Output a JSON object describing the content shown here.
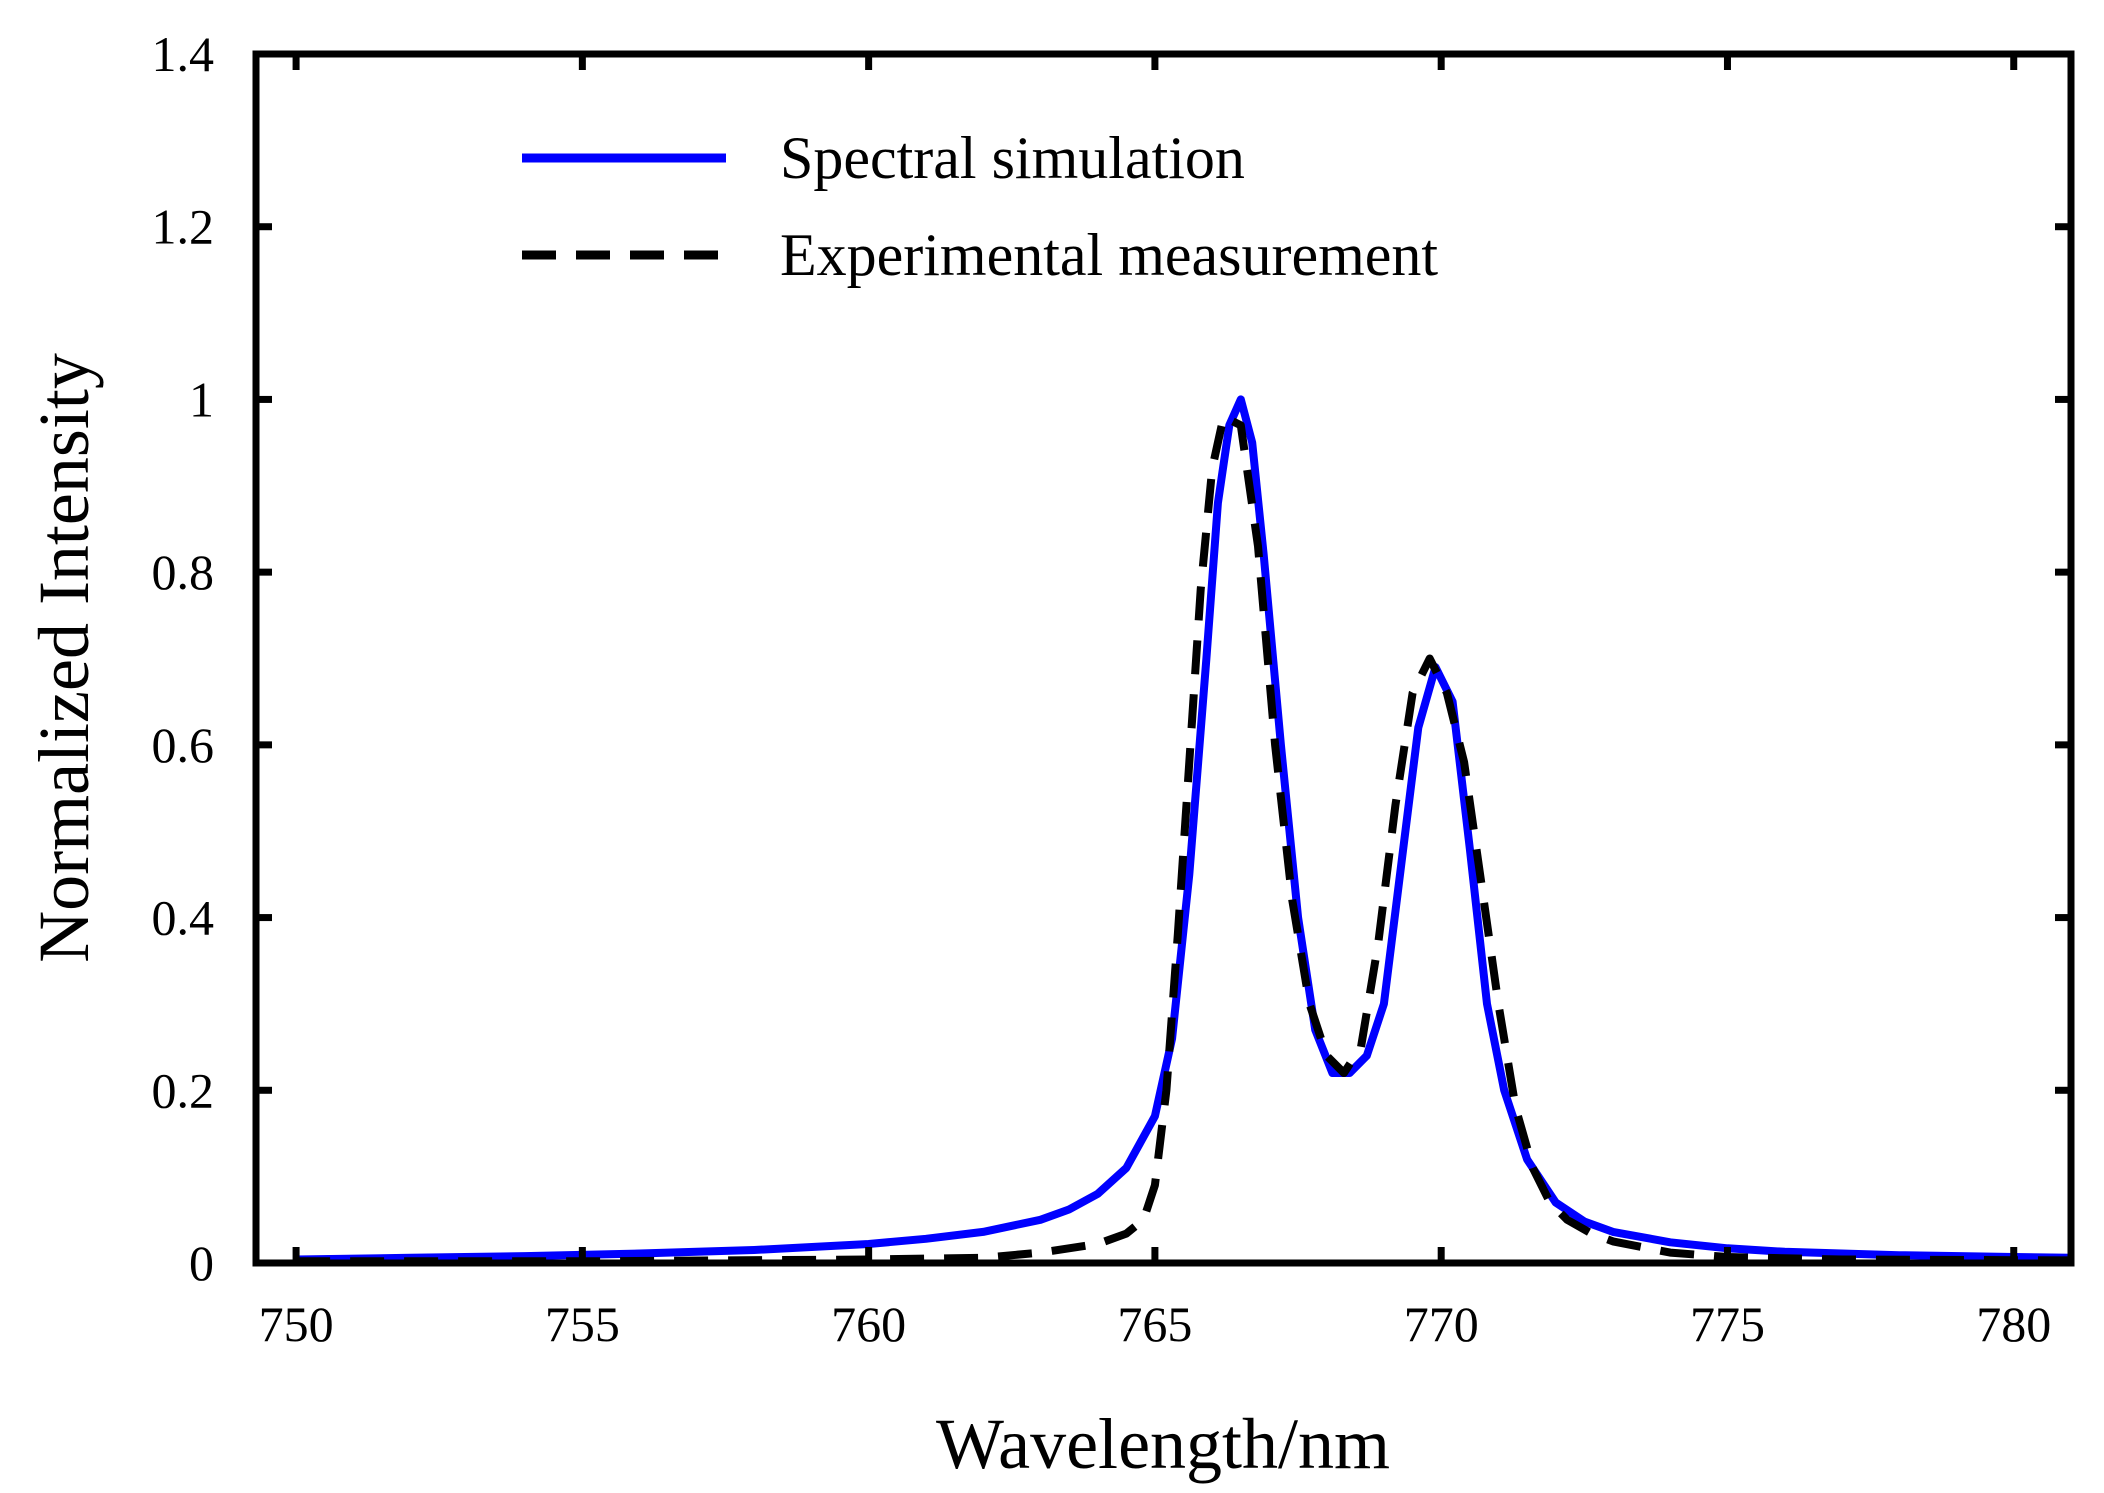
{
  "chart_data": {
    "type": "line",
    "title": "",
    "xlabel": "Wavelength/nm",
    "ylabel": "Normalized Intensity",
    "xlim": [
      749.3,
      781
    ],
    "ylim": [
      0,
      1.4
    ],
    "xticks": [
      "750",
      "755",
      "760",
      "765",
      "770",
      "775",
      "780"
    ],
    "yticks": [
      "0",
      "0.2",
      "0.4",
      "0.6",
      "0.8",
      "1",
      "1.2",
      "1.4"
    ],
    "grid": false,
    "legend_position": "top-left",
    "series": [
      {
        "name": "Spectral simulation",
        "color": "#0000ff",
        "style": "solid",
        "x": [
          750,
          752,
          754,
          756,
          758,
          760,
          761,
          762,
          763,
          763.5,
          764,
          764.5,
          765,
          765.3,
          765.6,
          765.9,
          766.1,
          766.3,
          766.5,
          766.7,
          766.9,
          767.2,
          767.5,
          767.8,
          768.1,
          768.4,
          768.7,
          769,
          769.3,
          769.6,
          769.9,
          770.2,
          770.5,
          770.8,
          771.1,
          771.5,
          772,
          772.5,
          773,
          774,
          775,
          776,
          778,
          780,
          781
        ],
        "y": [
          0.004,
          0.006,
          0.008,
          0.011,
          0.015,
          0.022,
          0.028,
          0.036,
          0.05,
          0.062,
          0.08,
          0.11,
          0.17,
          0.26,
          0.45,
          0.7,
          0.88,
          0.97,
          1.0,
          0.95,
          0.82,
          0.6,
          0.4,
          0.27,
          0.22,
          0.22,
          0.24,
          0.3,
          0.46,
          0.62,
          0.69,
          0.65,
          0.48,
          0.3,
          0.2,
          0.12,
          0.07,
          0.048,
          0.036,
          0.024,
          0.017,
          0.013,
          0.009,
          0.007,
          0.006
        ]
      },
      {
        "name": "Experimental measurement",
        "color": "#000000",
        "style": "dashed",
        "x": [
          750,
          755,
          760,
          762,
          763,
          764,
          764.5,
          764.8,
          765,
          765.2,
          765.4,
          765.6,
          765.8,
          766.0,
          766.2,
          766.5,
          766.8,
          767.1,
          767.4,
          767.7,
          768.0,
          768.3,
          768.6,
          768.9,
          769.2,
          769.5,
          769.8,
          770.1,
          770.4,
          770.7,
          771.0,
          771.3,
          771.6,
          771.9,
          772.2,
          772.6,
          773,
          774,
          775,
          777,
          781
        ],
        "y": [
          0.002,
          0.002,
          0.004,
          0.006,
          0.012,
          0.022,
          0.034,
          0.05,
          0.09,
          0.2,
          0.38,
          0.58,
          0.78,
          0.92,
          0.98,
          0.97,
          0.83,
          0.6,
          0.42,
          0.3,
          0.24,
          0.22,
          0.25,
          0.37,
          0.53,
          0.66,
          0.7,
          0.66,
          0.58,
          0.44,
          0.3,
          0.18,
          0.11,
          0.07,
          0.05,
          0.035,
          0.025,
          0.012,
          0.007,
          0.004,
          0.003
        ]
      }
    ]
  }
}
